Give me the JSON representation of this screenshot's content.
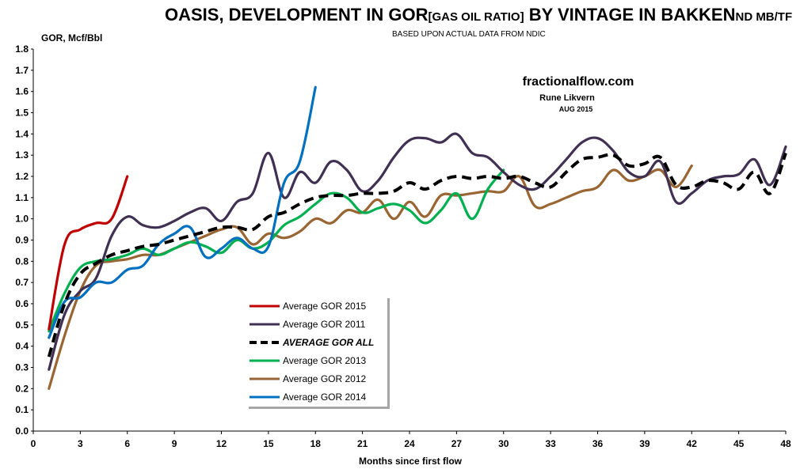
{
  "chart_data": {
    "type": "line",
    "title": "OASIS, DEVELOPMENT IN GOR",
    "title_bracket": "[GAS OIL RATIO]",
    "title_middle": " BY VINTAGE IN BAKKEN",
    "title_suffix": "ND MB/TF",
    "subtitle": "BASED UPON  ACTUAL DATA FROM NDIC",
    "ylabel": "GOR, Mcf/Bbl",
    "xlabel": "Months since first flow",
    "source_brand": "fractionalflow.com",
    "author": "Rune Likvern",
    "date": "AUG 2015",
    "xlim": [
      0,
      48
    ],
    "ylim": [
      0,
      1.8
    ],
    "x_ticks": [
      "0",
      "3",
      "6",
      "9",
      "12",
      "15",
      "18",
      "21",
      "24",
      "27",
      "30",
      "33",
      "36",
      "39",
      "42",
      "45",
      "48"
    ],
    "y_ticks": [
      "0.0",
      "0.1",
      "0.2",
      "0.3",
      "0.4",
      "0.5",
      "0.6",
      "0.7",
      "0.8",
      "0.9",
      "1.0",
      "1.1",
      "1.2",
      "1.3",
      "1.4",
      "1.5",
      "1.6",
      "1.7",
      "1.8"
    ],
    "grid": false,
    "legend_position": "bottom-left",
    "series": [
      {
        "name": "Average GOR 2015",
        "color": "#C00000",
        "dashed": false,
        "x": [
          1,
          2,
          3,
          4,
          5,
          6
        ],
        "y": [
          0.48,
          0.88,
          0.95,
          0.98,
          1.0,
          1.2
        ]
      },
      {
        "name": "Average GOR 2011",
        "color": "#403152",
        "dashed": false,
        "x": [
          1,
          2,
          3,
          4,
          5,
          6,
          7,
          8,
          9,
          10,
          11,
          12,
          13,
          14,
          15,
          16,
          17,
          18,
          19,
          20,
          21,
          22,
          23,
          24,
          25,
          26,
          27,
          28,
          29,
          30,
          31,
          32,
          33,
          34,
          35,
          36,
          37,
          38,
          39,
          40,
          41,
          42,
          43,
          44,
          45,
          46,
          47,
          48
        ],
        "y": [
          0.29,
          0.55,
          0.66,
          0.72,
          0.92,
          1.01,
          0.97,
          0.96,
          0.99,
          1.03,
          1.05,
          0.99,
          1.08,
          1.12,
          1.31,
          1.1,
          1.22,
          1.17,
          1.27,
          1.23,
          1.13,
          1.18,
          1.29,
          1.37,
          1.38,
          1.36,
          1.4,
          1.31,
          1.29,
          1.22,
          1.16,
          1.14,
          1.2,
          1.28,
          1.36,
          1.38,
          1.32,
          1.22,
          1.2,
          1.27,
          1.08,
          1.12,
          1.18,
          1.2,
          1.21,
          1.28,
          1.16,
          1.34
        ]
      },
      {
        "name": "AVERAGE GOR ALL",
        "color": "#000000",
        "dashed": true,
        "x": [
          1,
          2,
          3,
          4,
          5,
          6,
          7,
          8,
          9,
          10,
          11,
          12,
          13,
          14,
          15,
          16,
          17,
          18,
          19,
          20,
          21,
          22,
          23,
          24,
          25,
          26,
          27,
          28,
          29,
          30,
          31,
          32,
          33,
          34,
          35,
          36,
          37,
          38,
          39,
          40,
          41,
          42,
          43,
          44,
          45,
          46,
          47,
          48
        ],
        "y": [
          0.35,
          0.6,
          0.74,
          0.79,
          0.83,
          0.85,
          0.87,
          0.88,
          0.9,
          0.92,
          0.94,
          0.96,
          0.96,
          0.95,
          1.01,
          1.03,
          1.07,
          1.1,
          1.11,
          1.11,
          1.12,
          1.12,
          1.13,
          1.17,
          1.14,
          1.18,
          1.2,
          1.19,
          1.2,
          1.19,
          1.2,
          1.17,
          1.15,
          1.22,
          1.28,
          1.29,
          1.3,
          1.25,
          1.26,
          1.29,
          1.16,
          1.15,
          1.18,
          1.17,
          1.14,
          1.22,
          1.12,
          1.31
        ]
      },
      {
        "name": "Average GOR 2013",
        "color": "#00B050",
        "dashed": false,
        "x": [
          1,
          2,
          3,
          4,
          5,
          6,
          7,
          8,
          9,
          10,
          11,
          12,
          13,
          14,
          15,
          16,
          17,
          18,
          19,
          20,
          21,
          22,
          23,
          24,
          25,
          26,
          27,
          28,
          29,
          30
        ],
        "y": [
          0.47,
          0.65,
          0.77,
          0.8,
          0.81,
          0.83,
          0.86,
          0.83,
          0.86,
          0.89,
          0.87,
          0.84,
          0.9,
          0.86,
          0.89,
          0.97,
          1.01,
          1.07,
          1.12,
          1.1,
          1.03,
          1.05,
          1.07,
          1.04,
          0.98,
          1.04,
          1.12,
          1.0,
          1.14,
          1.23
        ]
      },
      {
        "name": "Average GOR 2012",
        "color": "#996633",
        "dashed": false,
        "x": [
          1,
          2,
          3,
          4,
          5,
          6,
          7,
          8,
          9,
          10,
          11,
          12,
          13,
          14,
          15,
          16,
          17,
          18,
          19,
          20,
          21,
          22,
          23,
          24,
          25,
          26,
          27,
          28,
          29,
          30,
          31,
          32,
          33,
          34,
          35,
          36,
          37,
          38,
          39,
          40,
          41,
          42
        ],
        "y": [
          0.2,
          0.45,
          0.66,
          0.78,
          0.8,
          0.81,
          0.83,
          0.83,
          0.86,
          0.89,
          0.92,
          0.95,
          0.96,
          0.88,
          0.93,
          0.91,
          0.94,
          1.0,
          0.98,
          1.04,
          1.03,
          1.09,
          1.0,
          1.08,
          1.01,
          1.11,
          1.11,
          1.12,
          1.13,
          1.13,
          1.2,
          1.06,
          1.07,
          1.1,
          1.13,
          1.15,
          1.23,
          1.18,
          1.2,
          1.23,
          1.15,
          1.25
        ]
      },
      {
        "name": "Average GOR 2014",
        "color": "#0070C0",
        "dashed": false,
        "x": [
          1,
          2,
          3,
          4,
          5,
          6,
          7,
          8,
          9,
          10,
          11,
          12,
          13,
          14,
          15,
          16,
          17,
          18
        ],
        "y": [
          0.44,
          0.61,
          0.63,
          0.7,
          0.7,
          0.76,
          0.78,
          0.88,
          0.93,
          0.96,
          0.82,
          0.86,
          0.91,
          0.86,
          0.87,
          1.17,
          1.27,
          1.62
        ]
      }
    ]
  }
}
